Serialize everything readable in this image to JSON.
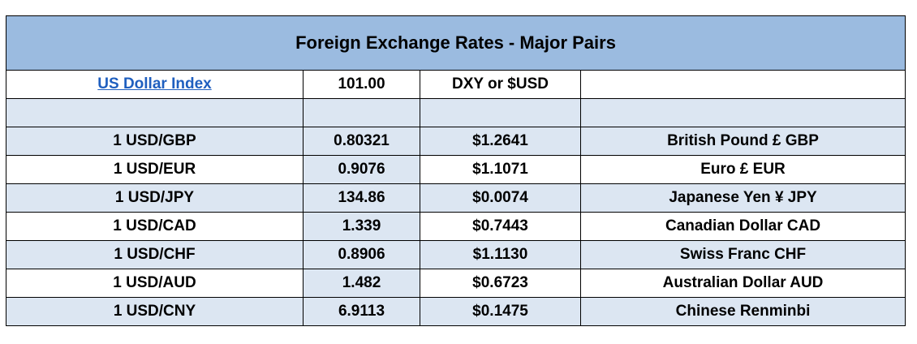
{
  "table": {
    "title": "Foreign Exchange Rates - Major Pairs",
    "index_row": {
      "label": "US Dollar Index",
      "value": "101.00",
      "symbol": "DXY or $USD",
      "note": ""
    },
    "rows": [
      {
        "pair": "1 USD/GBP",
        "rate": "0.80321",
        "usd_value": "$1.2641",
        "currency": "British Pound £ GBP"
      },
      {
        "pair": "1 USD/EUR",
        "rate": "0.9076",
        "usd_value": "$1.1071",
        "currency": "Euro £ EUR"
      },
      {
        "pair": "1 USD/JPY",
        "rate": "134.86",
        "usd_value": "$0.0074",
        "currency": "Japanese Yen ¥ JPY"
      },
      {
        "pair": "1 USD/CAD",
        "rate": "1.339",
        "usd_value": "$0.7443",
        "currency": "Canadian Dollar CAD"
      },
      {
        "pair": "1 USD/CHF",
        "rate": "0.8906",
        "usd_value": "$1.1130",
        "currency": "Swiss Franc CHF"
      },
      {
        "pair": "1 USD/AUD",
        "rate": "1.482",
        "usd_value": "$0.6723",
        "currency": "Australian Dollar AUD"
      },
      {
        "pair": "1 USD/CNY",
        "rate": "6.9113",
        "usd_value": "$0.1475",
        "currency": "Chinese Renminbi"
      }
    ]
  },
  "colors": {
    "header_blue": "#9bbbe0",
    "row_light": "#dce6f2",
    "link_blue": "#1f5fbf"
  }
}
